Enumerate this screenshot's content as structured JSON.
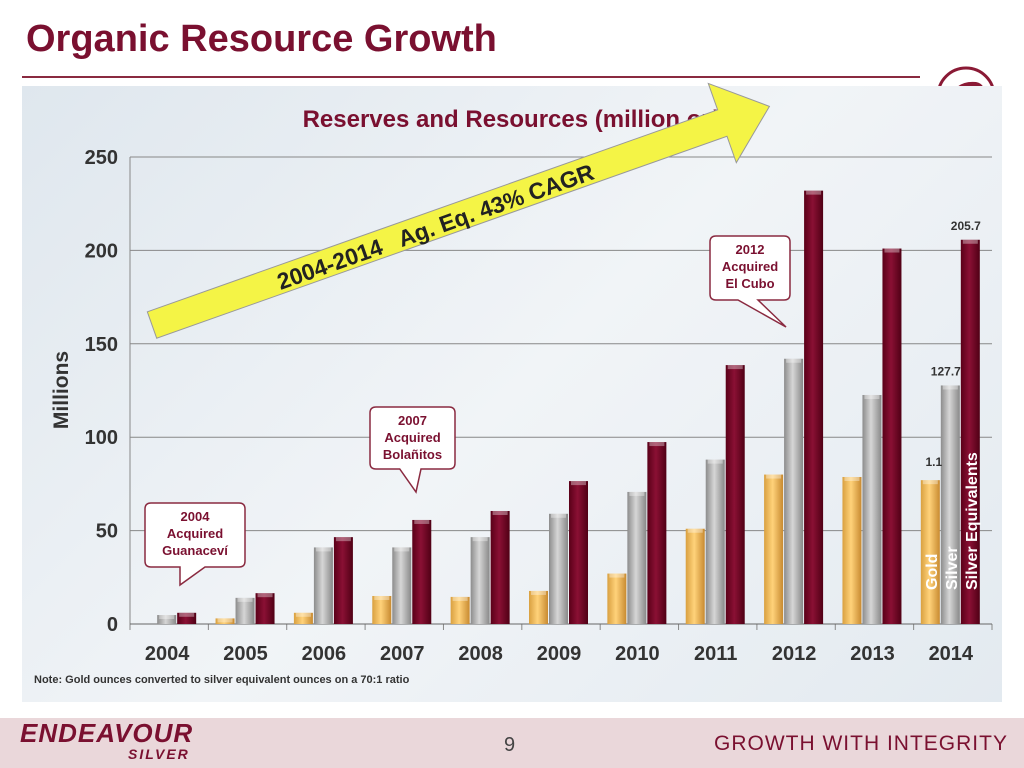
{
  "slide": {
    "title": "Organic Resource Growth",
    "note": "Note: Gold ounces converted to silver equivalent ounces on a 70:1 ratio",
    "page_number": "9",
    "brand_line1": "ENDEAVOUR",
    "brand_line2": "SILVER",
    "tagline": "GROWTH WITH INTEGRITY",
    "colors": {
      "title": "#7a1030",
      "gold": "#f5c160",
      "silver": "#b4b4b4",
      "silver_eq": "#7a0a2a",
      "arrow": "#f4f446"
    }
  },
  "chart_data": {
    "type": "bar",
    "title": "Reserves and Resources (million oz)",
    "ylabel": "Millions",
    "ylim": [
      0,
      250
    ],
    "yticks": [
      "0",
      "50",
      "100",
      "150",
      "200",
      "250"
    ],
    "grid": true,
    "categories": [
      "2004",
      "2005",
      "2006",
      "2007",
      "2008",
      "2009",
      "2010",
      "2011",
      "2012",
      "2013",
      "2014"
    ],
    "series": [
      {
        "name": "Gold",
        "color": "#f5c160",
        "values": [
          0,
          3,
          6,
          15,
          14.5,
          17.7,
          27,
          51,
          80,
          78.7,
          77
        ]
      },
      {
        "name": "Silver",
        "color": "#b4b4b4",
        "values": [
          4.8,
          14,
          41,
          41,
          46.5,
          59,
          70.7,
          88,
          142,
          122.6,
          127.7
        ]
      },
      {
        "name": "Silver Equivalents",
        "color": "#7a0a2a",
        "values": [
          6,
          16.5,
          46.5,
          55.7,
          60.5,
          76.5,
          97.4,
          138.6,
          232,
          201,
          205.7
        ]
      }
    ],
    "data_labels": [
      {
        "category": "2014",
        "series": "Gold",
        "text": "1.1"
      },
      {
        "category": "2014",
        "series": "Silver",
        "text": "127.7"
      },
      {
        "category": "2014",
        "series": "Silver Equivalents",
        "text": "205.7"
      }
    ],
    "arrow_annotation": "2004-2014   Ag. Eq. 43% CAGR",
    "callouts": [
      {
        "category": "2004",
        "lines": [
          "2004",
          "Acquired",
          "Guanaceví"
        ]
      },
      {
        "category": "2007",
        "lines": [
          "2007",
          "Acquired",
          "Bolañitos"
        ]
      },
      {
        "category": "2012",
        "lines": [
          "2012",
          "Acquired",
          "El Cubo"
        ]
      }
    ]
  }
}
